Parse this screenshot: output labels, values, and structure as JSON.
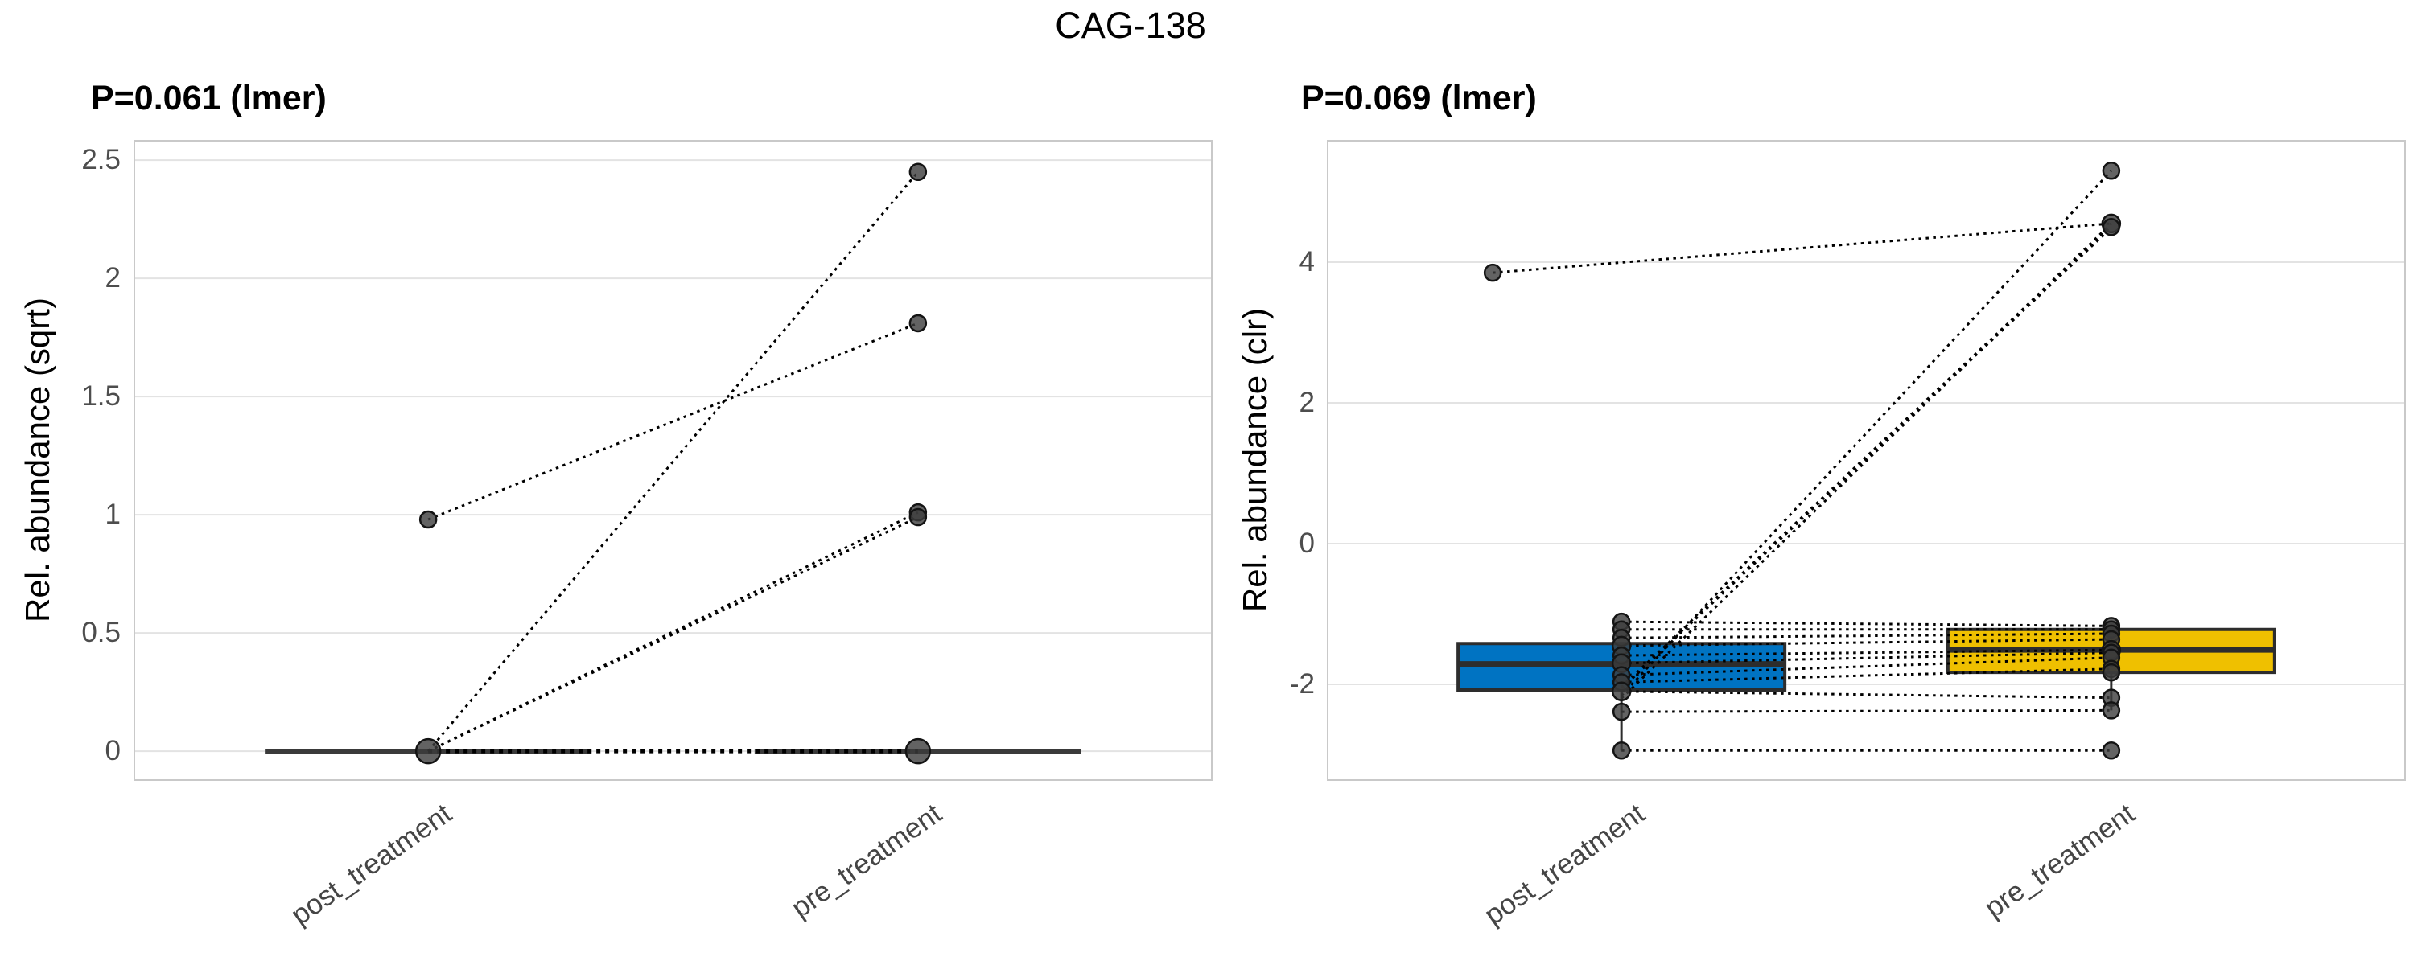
{
  "title": "CAG-138",
  "colors": {
    "post_box_fill": "#0073C2",
    "pre_box_fill": "#EFC000",
    "box_stroke": "#2d2d2d",
    "flat_box_line": "#3a3a3a",
    "dot_fill": "#3c3c3c",
    "dot_stroke": "#141414",
    "pair_line": "#000000",
    "gridline": "#e3e3e3",
    "panel_border": "#c9c9c9",
    "tick_text": "#4d4d4d",
    "title_text": "#000000"
  },
  "chart_data": [
    {
      "type": "paired-boxplot-line",
      "subtitle": "P=0.061 (lmer)",
      "y_label": "Rel. abundance (sqrt)",
      "categories": [
        "post_treatment",
        "pre_treatment"
      ],
      "ylim": [
        -0.122,
        2.582
      ],
      "grid": true,
      "y_ticks": [
        {
          "v": 0,
          "label": "0"
        },
        {
          "v": 0.5,
          "label": "0.5"
        },
        {
          "v": 1,
          "label": "1"
        },
        {
          "v": 1.5,
          "label": "1.5"
        },
        {
          "v": 2,
          "label": "2"
        },
        {
          "v": 2.5,
          "label": "2.5"
        }
      ],
      "boxes": [
        {
          "cat": 0,
          "q1": 0,
          "median": 0,
          "q3": 0,
          "flat": true
        },
        {
          "cat": 1,
          "q1": 0,
          "median": 0,
          "q3": 0,
          "flat": true
        }
      ],
      "pairs": [
        {
          "a": 0,
          "b": 2.45,
          "w": 3
        },
        {
          "a": 0,
          "b": 1.01,
          "w": 3
        },
        {
          "a": 0,
          "b": 0.99,
          "w": 3
        },
        {
          "a": 0.98,
          "b": 1.81,
          "w": 3
        },
        {
          "a": 0,
          "b": 0,
          "w": 5
        }
      ],
      "dots": [
        {
          "cat": 0,
          "v": 0,
          "r": 15
        },
        {
          "cat": 0,
          "v": 0.98,
          "r": 10
        },
        {
          "cat": 1,
          "v": 2.45,
          "r": 10
        },
        {
          "cat": 1,
          "v": 1.81,
          "r": 10
        },
        {
          "cat": 1,
          "v": 1.01,
          "r": 10
        },
        {
          "cat": 1,
          "v": 0.99,
          "r": 10
        },
        {
          "cat": 1,
          "v": 0,
          "r": 15
        }
      ]
    },
    {
      "type": "paired-boxplot-line",
      "subtitle": "P=0.069 (lmer)",
      "y_label": "Rel. abundance (clr)",
      "categories": [
        "post_treatment",
        "pre_treatment"
      ],
      "ylim": [
        -3.36,
        5.726
      ],
      "grid": true,
      "y_ticks": [
        {
          "v": -2,
          "label": "-2"
        },
        {
          "v": 0,
          "label": "0"
        },
        {
          "v": 2,
          "label": "2"
        },
        {
          "v": 4,
          "label": "4"
        }
      ],
      "boxes": [
        {
          "cat": 0,
          "q1": -2.08,
          "median": -1.71,
          "q3": -1.42,
          "whisker_low": -2.94,
          "fill": "post_box_fill"
        },
        {
          "cat": 1,
          "q1": -1.83,
          "median": -1.51,
          "q3": -1.22,
          "whisker_low": -2.37,
          "fill": "pre_box_fill"
        }
      ],
      "pairs": [
        {
          "a": 3.85,
          "b": 4.55,
          "w": 3,
          "aXoff": -160
        },
        {
          "a": -2.16,
          "b": 5.3,
          "w": 3
        },
        {
          "a": -2.05,
          "b": 4.5,
          "w": 4.5
        },
        {
          "a": -2.2,
          "b": 4.55,
          "w": 3
        },
        {
          "a": -1.11,
          "b": -1.17,
          "w": 3
        },
        {
          "a": -1.22,
          "b": -1.22,
          "w": 3
        },
        {
          "a": -1.34,
          "b": -1.28,
          "w": 3
        },
        {
          "a": -1.45,
          "b": -1.36,
          "w": 3
        },
        {
          "a": -1.59,
          "b": -1.51,
          "w": 3
        },
        {
          "a": -1.7,
          "b": -1.55,
          "w": 3
        },
        {
          "a": -1.87,
          "b": -1.62,
          "w": 3
        },
        {
          "a": -1.97,
          "b": -1.78,
          "w": 3
        },
        {
          "a": -2.1,
          "b": -2.19,
          "w": 3
        },
        {
          "a": -2.39,
          "b": -2.37,
          "w": 3
        },
        {
          "a": -2.94,
          "b": -2.94,
          "w": 3
        }
      ],
      "dots": [
        {
          "cat": 0,
          "v": 3.85,
          "r": 10,
          "xoff": -160
        },
        {
          "cat": 0,
          "v": -1.11,
          "r": 10
        },
        {
          "cat": 0,
          "v": -1.22,
          "r": 10
        },
        {
          "cat": 0,
          "v": -1.34,
          "r": 10
        },
        {
          "cat": 0,
          "v": -1.45,
          "r": 11
        },
        {
          "cat": 0,
          "v": -1.59,
          "r": 10
        },
        {
          "cat": 0,
          "v": -1.7,
          "r": 11
        },
        {
          "cat": 0,
          "v": -1.87,
          "r": 10
        },
        {
          "cat": 0,
          "v": -1.97,
          "r": 10
        },
        {
          "cat": 0,
          "v": -2.1,
          "r": 11
        },
        {
          "cat": 0,
          "v": -2.39,
          "r": 10
        },
        {
          "cat": 0,
          "v": -2.94,
          "r": 10
        },
        {
          "cat": 1,
          "v": 5.3,
          "r": 10
        },
        {
          "cat": 1,
          "v": 4.55,
          "r": 11
        },
        {
          "cat": 1,
          "v": 4.5,
          "r": 10
        },
        {
          "cat": 1,
          "v": -1.17,
          "r": 10
        },
        {
          "cat": 1,
          "v": -1.22,
          "r": 10
        },
        {
          "cat": 1,
          "v": -1.28,
          "r": 10
        },
        {
          "cat": 1,
          "v": -1.36,
          "r": 10
        },
        {
          "cat": 1,
          "v": -1.51,
          "r": 11
        },
        {
          "cat": 1,
          "v": -1.55,
          "r": 10
        },
        {
          "cat": 1,
          "v": -1.62,
          "r": 10
        },
        {
          "cat": 1,
          "v": -1.78,
          "r": 10
        },
        {
          "cat": 1,
          "v": -1.83,
          "r": 10
        },
        {
          "cat": 1,
          "v": -2.19,
          "r": 10
        },
        {
          "cat": 1,
          "v": -2.37,
          "r": 10
        },
        {
          "cat": 1,
          "v": -2.94,
          "r": 10
        }
      ]
    }
  ]
}
